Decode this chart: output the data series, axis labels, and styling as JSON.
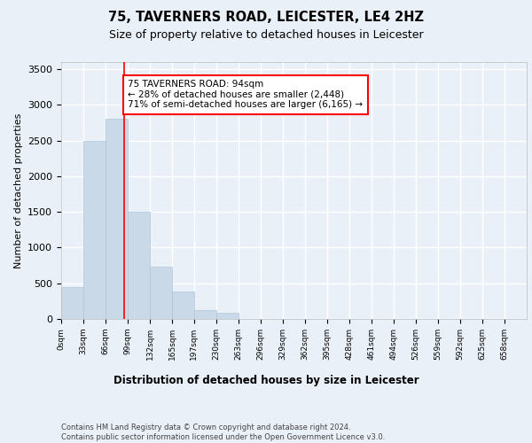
{
  "title_line1": "75, TAVERNERS ROAD, LEICESTER, LE4 2HZ",
  "title_line2": "Size of property relative to detached houses in Leicester",
  "xlabel": "Distribution of detached houses by size in Leicester",
  "ylabel": "Number of detached properties",
  "bin_labels": [
    "0sqm",
    "33sqm",
    "66sqm",
    "99sqm",
    "132sqm",
    "165sqm",
    "197sqm",
    "230sqm",
    "263sqm",
    "296sqm",
    "329sqm",
    "362sqm",
    "395sqm",
    "428sqm",
    "461sqm",
    "494sqm",
    "526sqm",
    "559sqm",
    "592sqm",
    "625sqm",
    "658sqm"
  ],
  "bar_values": [
    450,
    2500,
    2800,
    1500,
    730,
    390,
    130,
    90,
    0,
    0,
    0,
    0,
    0,
    0,
    0,
    0,
    0,
    0,
    0,
    0
  ],
  "bar_color": "#c9d9e8",
  "bar_edge_color": "#aec6d8",
  "property_line_x": 94,
  "property_line_color": "red",
  "annotation_text": "75 TAVERNERS ROAD: 94sqm\n← 28% of detached houses are smaller (2,448)\n71% of semi-detached houses are larger (6,165) →",
  "annotation_box_color": "white",
  "annotation_box_edge_color": "red",
  "ylim": [
    0,
    3600
  ],
  "yticks": [
    0,
    500,
    1000,
    1500,
    2000,
    2500,
    3000,
    3500
  ],
  "footer_text": "Contains HM Land Registry data © Crown copyright and database right 2024.\nContains public sector information licensed under the Open Government Licence v3.0.",
  "bin_width": 33,
  "background_color": "#eaf0f8",
  "plot_bg_color": "#eaf0f8",
  "grid_color": "#ffffff"
}
